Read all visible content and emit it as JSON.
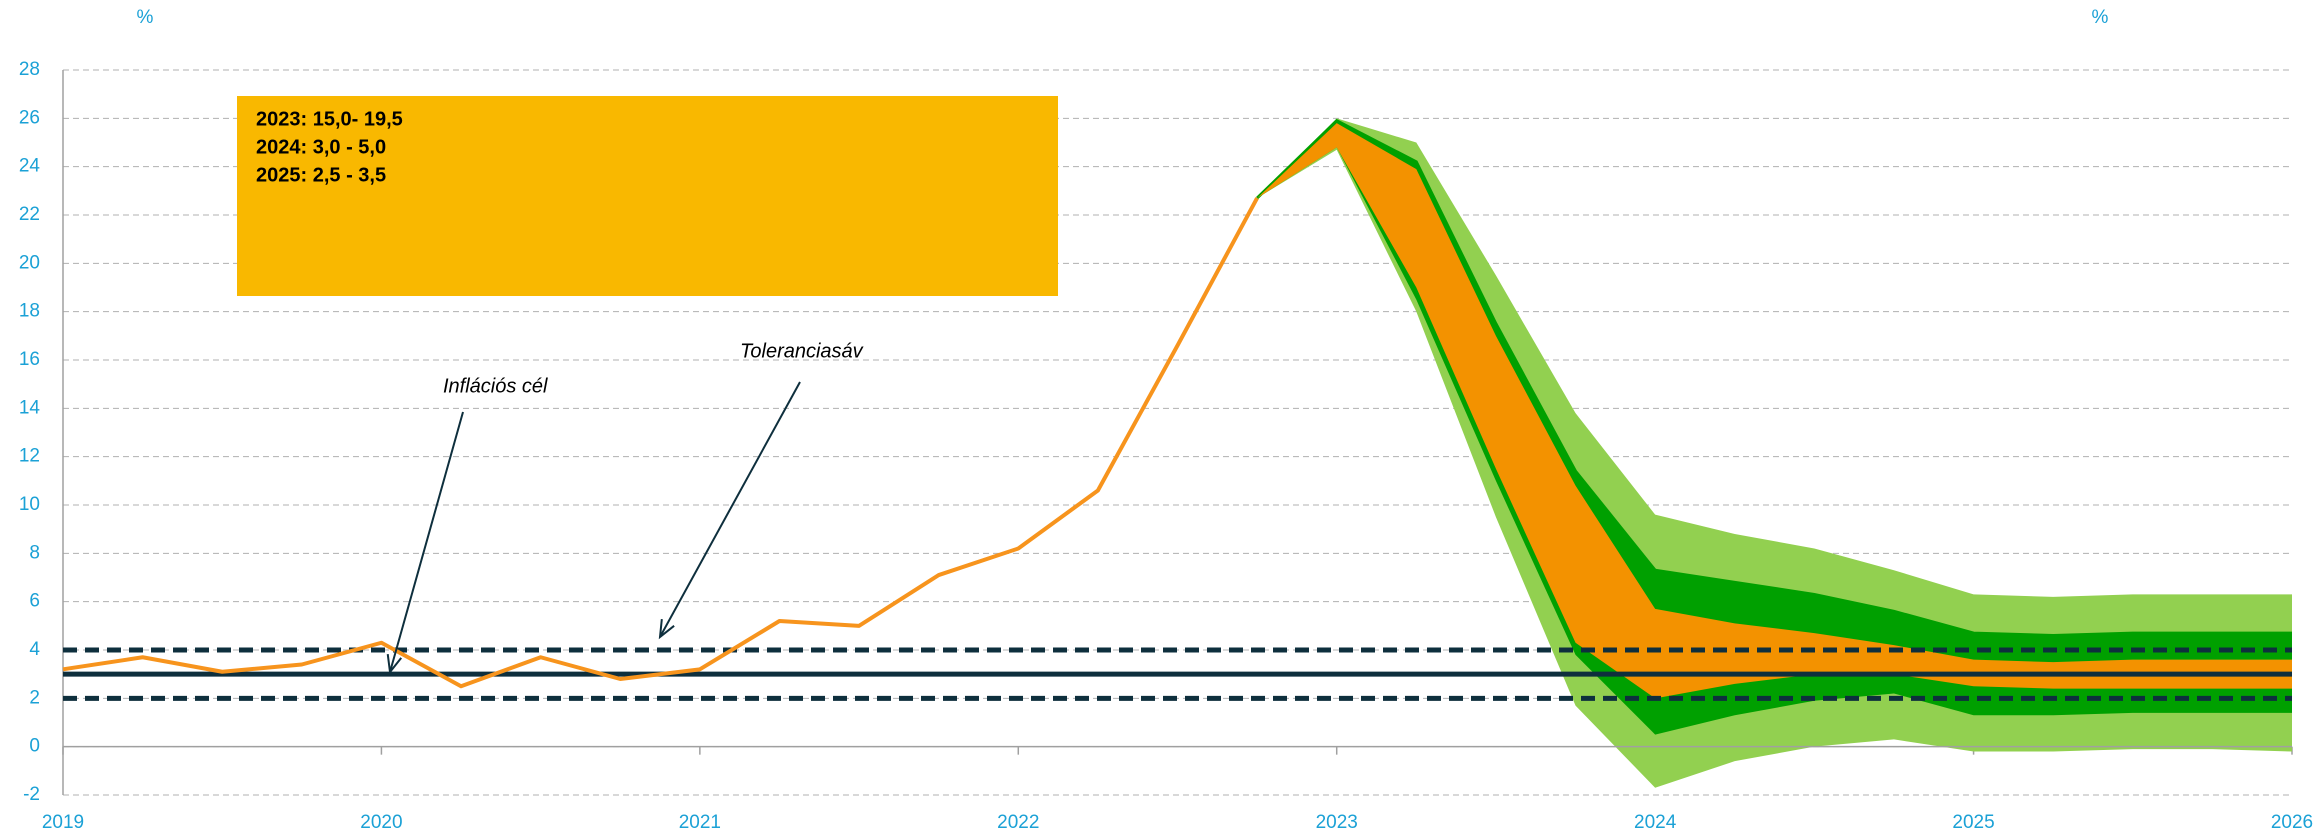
{
  "chart_data": {
    "type": "line",
    "y_unit_left": "%",
    "y_unit_right": "%",
    "xlim": [
      2019,
      2026
    ],
    "xticks": [
      2019,
      2020,
      2021,
      2022,
      2023,
      2024,
      2025,
      2026
    ],
    "ylim": [
      -2,
      28
    ],
    "yticks": [
      -2,
      0,
      2,
      4,
      6,
      8,
      10,
      12,
      14,
      16,
      18,
      20,
      22,
      24,
      26,
      28
    ],
    "grid": true,
    "series": [
      {
        "color": "#F7941D",
        "x": [
          2019,
          2019.25,
          2019.5,
          2019.75,
          2020,
          2020.25,
          2020.5,
          2020.75,
          2021,
          2021.25,
          2021.5,
          2021.75,
          2022,
          2022.25,
          2022.5,
          2022.75
        ],
        "values": [
          3.2,
          3.7,
          3.1,
          3.4,
          4.3,
          2.5,
          3.7,
          2.8,
          3.2,
          5.2,
          5.0,
          7.1,
          8.2,
          10.6,
          16.6,
          22.7
        ]
      }
    ],
    "fan": {
      "x": [
        2022.75,
        2023,
        2023.25,
        2023.5,
        2023.75,
        2024,
        2024.25,
        2024.5,
        2024.75,
        2025,
        2025.25,
        2025.5,
        2025.75,
        2026
      ],
      "bands": [
        {
          "color": "#92D050",
          "lower": [
            22.7,
            24.7,
            18.0,
            9.5,
            1.7,
            -1.7,
            -0.6,
            0,
            0.3,
            -0.2,
            -0.2,
            -0.1,
            -0.1,
            -0.2
          ],
          "upper": [
            22.7,
            26.0,
            25.0,
            19.5,
            13.8,
            9.6,
            8.8,
            8.2,
            7.3,
            6.3,
            6.2,
            6.3,
            6.3,
            6.3
          ]
        },
        {
          "color": "#00A000",
          "lower": [
            22.7,
            24.8,
            18.5,
            11.0,
            3.8,
            0.5,
            1.3,
            1.9,
            2.2,
            1.3,
            1.3,
            1.4,
            1.4,
            1.4
          ],
          "upper": [
            22.7,
            25.9,
            24.2,
            17.5,
            11.4,
            7.3,
            6.8,
            6.3,
            5.6,
            4.7,
            4.6,
            4.7,
            4.7,
            4.7
          ]
        },
        {
          "color": "#F39200",
          "lower": [
            22.7,
            24.8,
            19.0,
            11.5,
            4.3,
            2.0,
            2.6,
            3.0,
            3.0,
            2.5,
            2.4,
            2.4,
            2.4,
            2.4
          ],
          "upper": [
            22.7,
            25.8,
            23.9,
            17.0,
            10.8,
            5.7,
            5.1,
            4.7,
            4.2,
            3.6,
            3.5,
            3.6,
            3.6,
            3.6
          ]
        }
      ]
    },
    "reference_lines": [
      {
        "value": 3,
        "style": "solid",
        "color": "#0E2F3D"
      },
      {
        "value": 2,
        "style": "dashed",
        "color": "#0E2F3D"
      },
      {
        "value": 4,
        "style": "dashed",
        "color": "#0E2F3D"
      }
    ],
    "annotations": [
      "Inflációs cél",
      "Toleranciasáv"
    ],
    "box_color": "#F9B800",
    "box_lines": [
      "2023: 15,0- 19,5",
      "2024: 3,0 - 5,0",
      "2025: 2,5 - 3,5"
    ]
  }
}
